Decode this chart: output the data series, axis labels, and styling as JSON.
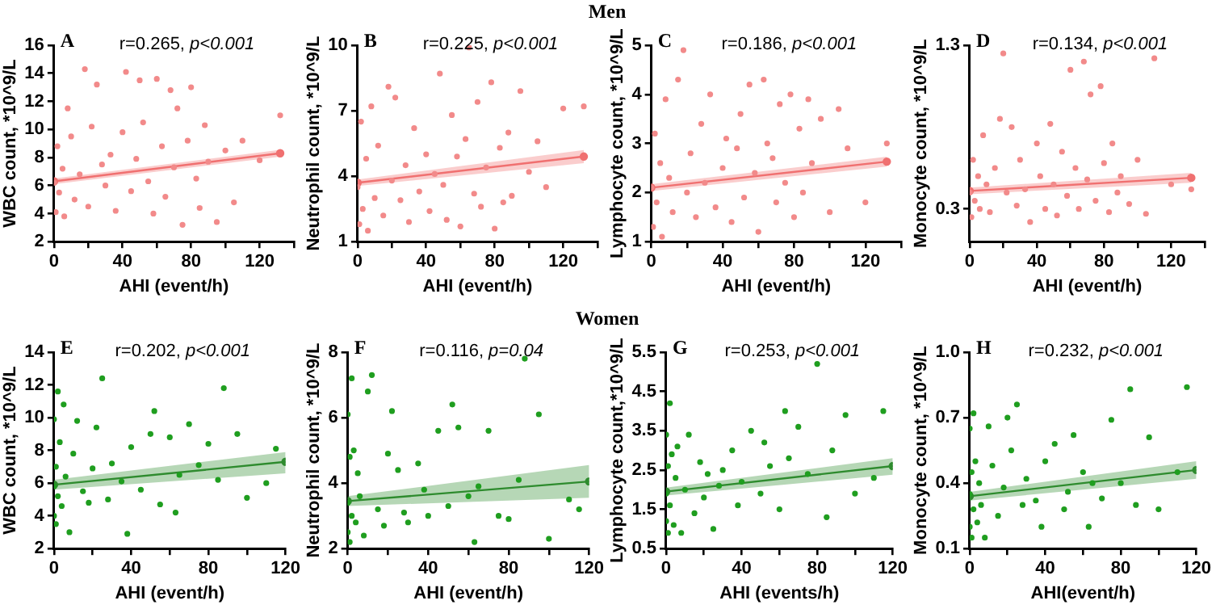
{
  "chart_data": [
    {
      "type": "other",
      "title": "Men"
    },
    {
      "type": "scatter",
      "xlabel": "AHI (event/h)",
      "ylabel": "WBC count, *10^9/L",
      "annotations": [
        "A",
        "r=0.265, p<0.001"
      ],
      "xlim": [
        0,
        140
      ],
      "xticks": [
        0,
        {
          "value": 20,
          "label": null
        },
        40,
        {
          "value": 60,
          "label": null
        },
        80,
        {
          "value": 100,
          "label": null
        },
        120,
        {
          "value": 140,
          "label": null
        }
      ],
      "ylim": [
        2,
        16
      ],
      "yticks": [
        2,
        4,
        6,
        8,
        10,
        12,
        14,
        16
      ],
      "legend": false,
      "marker": "circle",
      "series": [
        {
          "type": "scatter",
          "color": "#f28a8a",
          "x": [
            0,
            1,
            2,
            3,
            5,
            6,
            8,
            10,
            12,
            15,
            18,
            20,
            22,
            25,
            28,
            30,
            33,
            36,
            40,
            42,
            45,
            48,
            50,
            52,
            55,
            58,
            60,
            63,
            65,
            68,
            70,
            72,
            75,
            78,
            80,
            83,
            85,
            88,
            90,
            95,
            100,
            105,
            110,
            120,
            132
          ],
          "values": [
            6.2,
            4.1,
            8.8,
            5.5,
            7.2,
            3.8,
            11.5,
            9.5,
            5.0,
            6.8,
            14.3,
            4.5,
            10.2,
            13.2,
            7.5,
            6.0,
            8.2,
            4.2,
            9.8,
            14.1,
            5.6,
            7.9,
            13.5,
            10.5,
            6.3,
            4.0,
            13.6,
            8.8,
            5.2,
            12.8,
            7.3,
            11.5,
            3.2,
            9.2,
            13.0,
            6.5,
            4.4,
            10.3,
            7.7,
            3.4,
            8.5,
            4.8,
            9.2,
            7.8,
            11.0
          ]
        },
        {
          "type": "line",
          "color": "#f07070",
          "x": [
            0,
            132
          ],
          "values": [
            6.3,
            8.3
          ],
          "lower": [
            6.1,
            8.05
          ],
          "upper": [
            6.5,
            8.55
          ]
        }
      ]
    },
    {
      "type": "scatter",
      "xlabel": "AHI (event/h)",
      "ylabel": "Neutrophil count, *10^9/L",
      "annotations": [
        "B",
        "r=0.225, p<0.001"
      ],
      "xlim": [
        0,
        140
      ],
      "xticks": [
        0,
        {
          "value": 20,
          "label": null
        },
        40,
        {
          "value": 60,
          "label": null
        },
        80,
        {
          "value": 100,
          "label": null
        },
        120,
        {
          "value": 140,
          "label": null
        }
      ],
      "ylim": [
        1,
        10
      ],
      "yticks": [
        1,
        4,
        7,
        10
      ],
      "legend": false,
      "marker": "circle",
      "series": [
        {
          "type": "scatter",
          "color": "#f28a8a",
          "x": [
            0,
            1,
            2,
            3,
            5,
            6,
            8,
            10,
            12,
            15,
            18,
            20,
            22,
            25,
            28,
            30,
            33,
            36,
            40,
            42,
            45,
            48,
            50,
            52,
            55,
            58,
            60,
            63,
            65,
            68,
            70,
            72,
            75,
            78,
            80,
            83,
            85,
            88,
            90,
            95,
            100,
            105,
            110,
            120,
            132
          ],
          "values": [
            3.5,
            1.8,
            6.5,
            2.5,
            4.8,
            1.5,
            7.2,
            3.0,
            5.4,
            2.2,
            8.1,
            3.8,
            7.6,
            2.9,
            4.5,
            1.9,
            6.2,
            3.3,
            5.0,
            2.4,
            4.1,
            8.7,
            3.6,
            2.0,
            6.8,
            4.9,
            1.7,
            5.7,
            9.9,
            3.2,
            7.4,
            2.6,
            4.4,
            8.3,
            1.6,
            5.3,
            2.8,
            6.0,
            3.1,
            7.9,
            4.2,
            5.6,
            3.5,
            7.1,
            7.2
          ]
        },
        {
          "type": "line",
          "color": "#f07070",
          "x": [
            0,
            132
          ],
          "values": [
            3.7,
            4.9
          ],
          "lower": [
            3.55,
            4.6
          ],
          "upper": [
            3.85,
            5.2
          ]
        }
      ]
    },
    {
      "type": "scatter",
      "xlabel": "AHI (event/h)",
      "ylabel": "Lymphocyte count, *10^9/L",
      "annotations": [
        "C",
        "r=0.186, p<0.001"
      ],
      "xlim": [
        0,
        140
      ],
      "xticks": [
        0,
        {
          "value": 20,
          "label": null
        },
        40,
        {
          "value": 60,
          "label": null
        },
        80,
        {
          "value": 100,
          "label": null
        },
        120,
        {
          "value": 140,
          "label": null
        }
      ],
      "ylim": [
        1,
        5
      ],
      "yticks": [
        1,
        2,
        3,
        4,
        5
      ],
      "legend": false,
      "marker": "circle",
      "series": [
        {
          "type": "scatter",
          "color": "#f28a8a",
          "x": [
            0,
            1,
            2,
            3,
            5,
            6,
            8,
            10,
            12,
            15,
            18,
            20,
            22,
            25,
            28,
            30,
            33,
            36,
            40,
            42,
            45,
            48,
            50,
            52,
            55,
            58,
            60,
            63,
            65,
            68,
            70,
            72,
            75,
            78,
            80,
            83,
            85,
            88,
            90,
            95,
            100,
            105,
            110,
            120,
            132
          ],
          "values": [
            2.1,
            1.3,
            3.2,
            1.8,
            2.6,
            1.1,
            3.9,
            2.3,
            1.6,
            4.3,
            4.9,
            2.0,
            2.8,
            1.5,
            3.4,
            2.2,
            4.0,
            1.7,
            2.5,
            3.1,
            1.4,
            2.9,
            3.6,
            1.9,
            4.2,
            2.4,
            1.2,
            4.3,
            3.0,
            2.7,
            1.8,
            3.8,
            2.2,
            4.0,
            1.5,
            3.3,
            2.0,
            3.9,
            2.6,
            3.5,
            1.6,
            3.7,
            2.9,
            1.8,
            3.0
          ]
        },
        {
          "type": "line",
          "color": "#f07070",
          "x": [
            0,
            132
          ],
          "values": [
            2.1,
            2.63
          ],
          "lower": [
            2.03,
            2.53
          ],
          "upper": [
            2.17,
            2.73
          ]
        }
      ]
    },
    {
      "type": "scatter",
      "xlabel": "AHI (event/h)",
      "ylabel": "Monocyte count, *10^9/L",
      "annotations": [
        "D",
        "r=0.134, p<0.001"
      ],
      "xlim": [
        0,
        140
      ],
      "xticks": [
        0,
        {
          "value": 20,
          "label": null
        },
        40,
        {
          "value": 60,
          "label": null
        },
        80,
        {
          "value": 100,
          "label": null
        },
        120,
        {
          "value": 140,
          "label": null
        }
      ],
      "ylim": [
        0.1,
        1.3
      ],
      "yticks": [
        0.3,
        1.3
      ],
      "legend": false,
      "marker": "circle",
      "series": [
        {
          "type": "scatter",
          "color": "#f28a8a",
          "x": [
            0,
            1,
            2,
            3,
            5,
            6,
            8,
            10,
            12,
            15,
            18,
            20,
            22,
            25,
            28,
            30,
            33,
            36,
            40,
            42,
            45,
            48,
            50,
            52,
            55,
            58,
            60,
            63,
            65,
            68,
            70,
            72,
            75,
            78,
            80,
            83,
            85,
            88,
            90,
            95,
            100,
            105,
            110,
            120,
            132
          ],
          "values": [
            0.4,
            0.25,
            0.6,
            0.35,
            0.5,
            0.3,
            0.75,
            0.45,
            0.28,
            0.55,
            0.85,
            1.25,
            0.4,
            0.8,
            0.32,
            0.6,
            0.42,
            0.22,
            0.7,
            0.5,
            0.3,
            0.82,
            0.45,
            0.26,
            0.65,
            0.38,
            1.15,
            0.55,
            0.3,
            1.2,
            0.48,
            1.0,
            0.35,
            1.05,
            0.58,
            0.28,
            0.7,
            0.4,
            0.5,
            0.33,
            0.6,
            0.27,
            1.22,
            0.45,
            0.42
          ]
        },
        {
          "type": "line",
          "color": "#f07070",
          "x": [
            0,
            132
          ],
          "values": [
            0.41,
            0.49
          ],
          "lower": [
            0.39,
            0.46
          ],
          "upper": [
            0.43,
            0.52
          ]
        }
      ]
    },
    {
      "type": "other",
      "title": "Women"
    },
    {
      "type": "scatter",
      "xlabel": "AHI (event/h)",
      "ylabel": "WBC count, *10^9/L",
      "annotations": [
        "E",
        "r=0.202, p<0.001"
      ],
      "xlim": [
        0,
        120
      ],
      "xticks": [
        0,
        {
          "value": 20,
          "label": null
        },
        40,
        {
          "value": 60,
          "label": null
        },
        80,
        {
          "value": 100,
          "label": null
        },
        120
      ],
      "ylim": [
        2,
        14
      ],
      "yticks": [
        2,
        4,
        6,
        8,
        10,
        12,
        14
      ],
      "legend": false,
      "marker": "circle",
      "series": [
        {
          "type": "scatter",
          "color": "#1f9e1f",
          "x": [
            0,
            0,
            0,
            1,
            1,
            2,
            2,
            3,
            4,
            5,
            6,
            8,
            10,
            12,
            15,
            18,
            20,
            22,
            25,
            28,
            30,
            35,
            38,
            40,
            45,
            50,
            52,
            55,
            60,
            63,
            65,
            70,
            75,
            80,
            85,
            88,
            95,
            100,
            110,
            115
          ],
          "values": [
            5.8,
            4.0,
            9.9,
            7.0,
            3.5,
            11.6,
            5.2,
            8.5,
            4.6,
            10.8,
            6.4,
            3.0,
            7.8,
            9.8,
            5.5,
            4.8,
            6.9,
            9.4,
            12.4,
            5.0,
            7.2,
            6.1,
            2.9,
            8.2,
            5.6,
            9.0,
            10.4,
            4.7,
            8.8,
            4.2,
            6.5,
            9.6,
            7.1,
            8.4,
            6.2,
            11.8,
            9.0,
            5.1,
            6.0,
            8.1
          ]
        },
        {
          "type": "line",
          "color": "#2e8b2e",
          "x": [
            0,
            120
          ],
          "values": [
            5.9,
            7.3
          ],
          "lower": [
            5.6,
            6.6
          ],
          "upper": [
            6.2,
            7.9
          ]
        }
      ]
    },
    {
      "type": "scatter",
      "xlabel": "AHI (event/h)",
      "ylabel": "Neutrophil count, *10^9/L",
      "annotations": [
        "F",
        "r=0.116, p=0.04"
      ],
      "xlim": [
        0,
        120
      ],
      "xticks": [
        0,
        {
          "value": 20,
          "label": null
        },
        40,
        {
          "value": 60,
          "label": null
        },
        80,
        {
          "value": 100,
          "label": null
        },
        120
      ],
      "ylim": [
        2,
        8
      ],
      "yticks": [
        2,
        4,
        6,
        8
      ],
      "legend": false,
      "marker": "circle",
      "series": [
        {
          "type": "scatter",
          "color": "#1f9e1f",
          "x": [
            0,
            0,
            0,
            1,
            1,
            2,
            2,
            3,
            4,
            5,
            6,
            8,
            10,
            12,
            15,
            18,
            20,
            22,
            25,
            28,
            30,
            35,
            38,
            40,
            45,
            50,
            52,
            55,
            60,
            63,
            65,
            70,
            75,
            80,
            85,
            88,
            95,
            100,
            110,
            115
          ],
          "values": [
            3.4,
            2.5,
            6.1,
            4.8,
            2.2,
            7.2,
            3.0,
            5.0,
            2.8,
            4.3,
            3.6,
            2.4,
            6.8,
            7.3,
            3.2,
            2.7,
            4.9,
            6.2,
            4.4,
            3.1,
            2.8,
            4.6,
            3.8,
            3.0,
            5.6,
            3.3,
            6.4,
            5.7,
            3.6,
            2.2,
            3.9,
            5.6,
            3.0,
            2.9,
            4.1,
            7.8,
            6.1,
            2.3,
            3.5,
            3.2
          ]
        },
        {
          "type": "line",
          "color": "#2e8b2e",
          "x": [
            0,
            120
          ],
          "values": [
            3.45,
            4.05
          ],
          "lower": [
            3.3,
            3.55
          ],
          "upper": [
            3.6,
            4.55
          ]
        }
      ]
    },
    {
      "type": "scatter",
      "xlabel": "AHI (events/h)",
      "ylabel": "Lymphocyte count,*10^9/L",
      "annotations": [
        "G",
        "r=0.253, p<0.001"
      ],
      "xlim": [
        0,
        120
      ],
      "xticks": [
        0,
        {
          "value": 20,
          "label": null
        },
        40,
        {
          "value": 60,
          "label": null
        },
        80,
        {
          "value": 100,
          "label": null
        },
        120
      ],
      "ylim": [
        0.5,
        5.5
      ],
      "yticks": [
        0.5,
        1.5,
        2.5,
        3.5,
        4.5,
        5.5
      ],
      "legend": false,
      "marker": "circle",
      "series": [
        {
          "type": "scatter",
          "color": "#1f9e1f",
          "x": [
            0,
            0,
            0,
            1,
            1,
            2,
            2,
            3,
            4,
            5,
            6,
            8,
            10,
            12,
            15,
            18,
            20,
            22,
            25,
            28,
            30,
            35,
            38,
            40,
            45,
            50,
            52,
            55,
            60,
            63,
            65,
            70,
            75,
            80,
            85,
            88,
            95,
            100,
            110,
            115
          ],
          "values": [
            1.9,
            1.2,
            3.4,
            2.6,
            0.9,
            4.2,
            1.6,
            2.9,
            1.1,
            2.3,
            3.1,
            0.9,
            2.0,
            3.4,
            1.4,
            2.7,
            1.8,
            2.4,
            1.0,
            2.1,
            2.5,
            3.0,
            1.6,
            2.2,
            3.5,
            1.9,
            3.2,
            2.6,
            1.5,
            4.0,
            2.8,
            3.6,
            2.4,
            5.2,
            1.3,
            3.0,
            3.9,
            1.9,
            2.3,
            4.0
          ]
        },
        {
          "type": "line",
          "color": "#2e8b2e",
          "x": [
            0,
            120
          ],
          "values": [
            1.95,
            2.6
          ],
          "lower": [
            1.85,
            2.38
          ],
          "upper": [
            2.05,
            2.8
          ]
        }
      ]
    },
    {
      "type": "scatter",
      "xlabel": "AHI(event/h)",
      "ylabel": "Monocyte count, *10^9/L",
      "annotations": [
        "H",
        "r=0.232, p<0.001"
      ],
      "xlim": [
        0,
        120
      ],
      "xticks": [
        0,
        {
          "value": 20,
          "label": null
        },
        40,
        {
          "value": 60,
          "label": null
        },
        80,
        {
          "value": 100,
          "label": null
        },
        120
      ],
      "ylim": [
        0.1,
        1.0
      ],
      "yticks": [
        0.1,
        0.4,
        0.7,
        {
          "value": 1.0,
          "label": "1.0"
        }
      ],
      "legend": false,
      "marker": "circle",
      "series": [
        {
          "type": "scatter",
          "color": "#1f9e1f",
          "x": [
            0,
            0,
            0,
            1,
            1,
            2,
            2,
            3,
            4,
            5,
            6,
            8,
            10,
            12,
            15,
            18,
            20,
            22,
            25,
            28,
            30,
            35,
            38,
            40,
            45,
            50,
            52,
            55,
            60,
            63,
            65,
            70,
            75,
            80,
            85,
            88,
            95,
            100,
            110,
            115
          ],
          "values": [
            0.35,
            0.2,
            0.65,
            0.45,
            0.15,
            0.72,
            0.28,
            0.5,
            0.22,
            0.4,
            0.3,
            0.15,
            0.66,
            0.48,
            0.25,
            0.38,
            0.7,
            0.55,
            0.76,
            0.3,
            0.42,
            0.32,
            0.2,
            0.5,
            0.58,
            0.28,
            0.36,
            0.62,
            0.45,
            0.2,
            0.4,
            0.33,
            0.69,
            0.4,
            0.83,
            0.3,
            0.61,
            0.28,
            0.45,
            0.84
          ]
        },
        {
          "type": "line",
          "color": "#2e8b2e",
          "x": [
            0,
            120
          ],
          "values": [
            0.34,
            0.46
          ],
          "lower": [
            0.32,
            0.42
          ],
          "upper": [
            0.36,
            0.5
          ]
        }
      ]
    }
  ]
}
